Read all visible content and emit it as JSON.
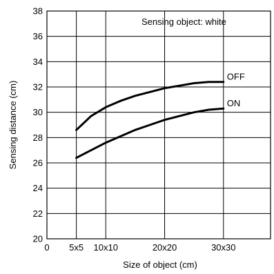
{
  "chart_data": {
    "type": "line",
    "title": "",
    "annotation": "Sensing object: white",
    "xlabel": "Size of object (cm)",
    "ylabel": "Sensing distance (cm)",
    "xlim": [
      0,
      38
    ],
    "ylim": [
      20,
      38
    ],
    "x_ticks": [
      {
        "value": 0,
        "label": "0"
      },
      {
        "value": 5,
        "label": "5x5"
      },
      {
        "value": 10,
        "label": "10x10"
      },
      {
        "value": 20,
        "label": "20x20"
      },
      {
        "value": 30,
        "label": "30x30"
      }
    ],
    "y_ticks": [
      20,
      22,
      24,
      26,
      28,
      30,
      32,
      34,
      36,
      38
    ],
    "grid": true,
    "series": [
      {
        "name": "OFF",
        "x": [
          5,
          7.5,
          10,
          12.5,
          15,
          17.5,
          20,
          22.5,
          25,
          27.5,
          30
        ],
        "y": [
          28.6,
          29.7,
          30.4,
          30.9,
          31.3,
          31.6,
          31.9,
          32.1,
          32.3,
          32.4,
          32.4
        ]
      },
      {
        "name": "ON",
        "x": [
          5,
          7.5,
          10,
          12.5,
          15,
          17.5,
          20,
          22.5,
          25,
          27.5,
          30
        ],
        "y": [
          26.4,
          27.0,
          27.6,
          28.1,
          28.6,
          29.0,
          29.4,
          29.7,
          30.0,
          30.2,
          30.3
        ]
      }
    ]
  }
}
